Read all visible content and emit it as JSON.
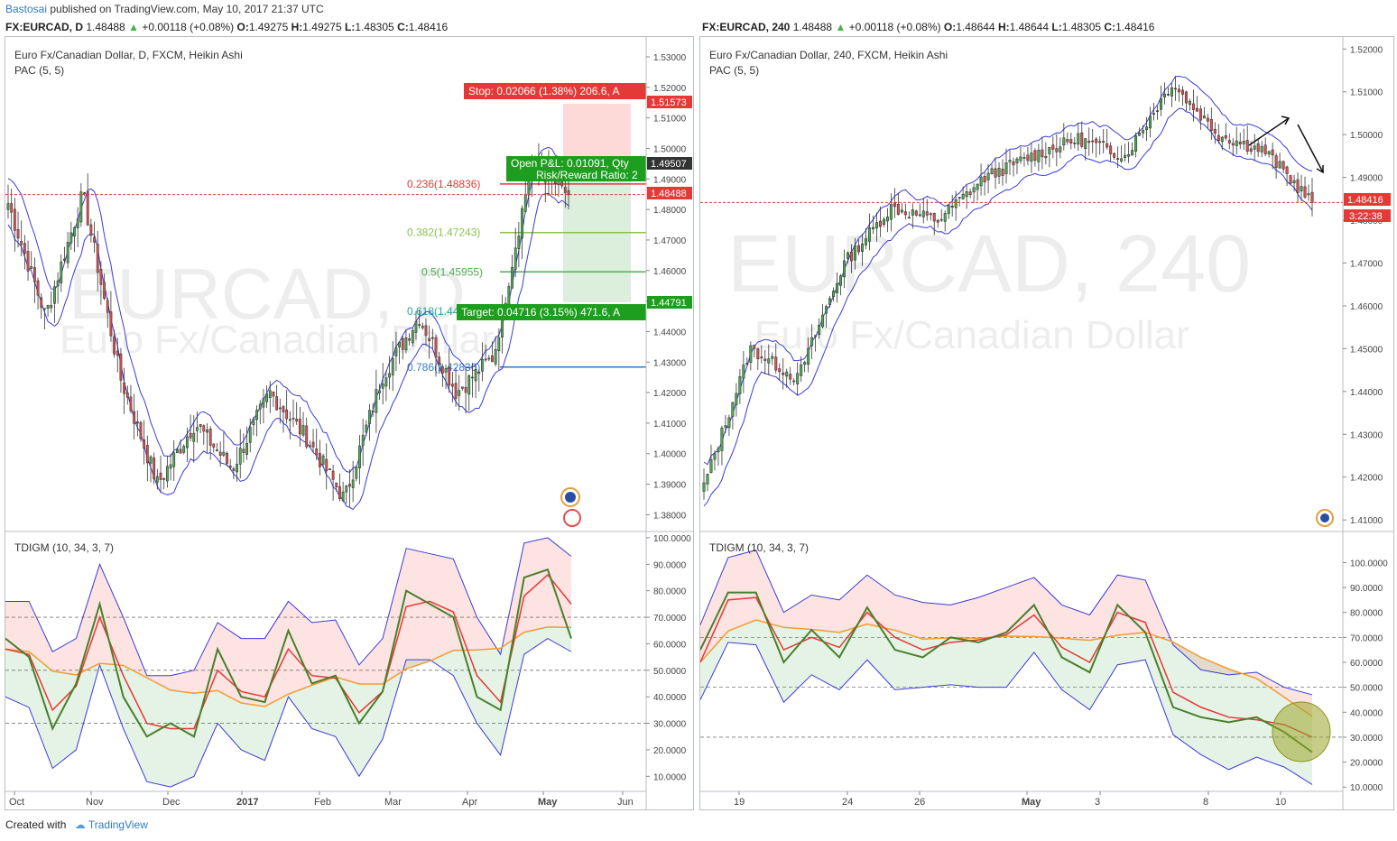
{
  "header": {
    "author": "Bastosai",
    "published_text": "published on TradingView.com, May 10, 2017 21:37 UTC"
  },
  "footer": {
    "created_with": "Created with",
    "brand": "TradingView"
  },
  "colors": {
    "bull": "#4caf50",
    "bear": "#e84f4f",
    "pac": "#3b3bd6",
    "price_line": "#e53935",
    "macd_green": "#4a7f2c",
    "signal_red": "#e53935",
    "midline_orange": "#f39c33"
  },
  "left": {
    "symbol_line": {
      "symbol": "FX:EURCAD, D",
      "last": "1.48488",
      "change": "+0.00118 (+0.08%)",
      "o": "1.49275",
      "h": "1.49275",
      "l": "1.48305",
      "c": "1.48416"
    },
    "title": "Euro Fx/Canadian Dollar, D, FXCM, Heikin Ashi",
    "indicator": "PAC (5, 5)",
    "watermark_1": "EURCAD, D",
    "watermark_2": "Euro Fx/Canadian Dollar",
    "position_labels": {
      "stop": "Stop: 0.02066 (1.38%) 206.6, A",
      "pnl": "Open P&L: 0.01091, Qty",
      "rr": "Risk/Reward Ratio: 2",
      "target": "Target: 0.04716 (3.15%) 471.6, A"
    },
    "price_tags": {
      "stop": "1.51573",
      "entry": "1.49507",
      "current": "1.48488",
      "target": "1.44791"
    },
    "fib_labels": [
      "0.236(1.48836)",
      "0.382(1.47243)",
      "0.5(1.45955)",
      "0.618(1.44668)",
      "0.786(1.42836)"
    ],
    "lower_title": "TDIGM (10, 34, 3, 7)"
  },
  "right": {
    "symbol_line": {
      "symbol": "FX:EURCAD, 240",
      "last": "1.48488",
      "change": "+0.00118 (+0.08%)",
      "o": "1.48644",
      "h": "1.48644",
      "l": "1.48305",
      "c": "1.48416"
    },
    "title": "Euro Fx/Canadian Dollar, 240, FXCM, Heikin Ashi",
    "indicator": "PAC (5, 5)",
    "watermark_1": "EURCAD, 240",
    "watermark_2": "Euro Fx/Canadian Dollar",
    "price_tags": {
      "current": "1.48416",
      "countdown": "3:22:38"
    },
    "lower_title": "TDIGM (10, 34, 3, 7)"
  },
  "chart_data": [
    {
      "type": "candlestick",
      "panel": "left-price",
      "title": "Euro Fx/Canadian Dollar, D, FXCM, Heikin Ashi",
      "x_ticks": [
        "Oct",
        "Nov",
        "Dec",
        "2017",
        "Feb",
        "Mar",
        "Apr",
        "May",
        "Jun"
      ],
      "y_ticks": [
        "1.53000",
        "1.52000",
        "1.51000",
        "1.50000",
        "1.49000",
        "1.48000",
        "1.47000",
        "1.46000",
        "1.45000",
        "1.44000",
        "1.43000",
        "1.42000",
        "1.41000",
        "1.40000",
        "1.39000",
        "1.38000"
      ],
      "ylim": [
        1.3745,
        1.5365
      ],
      "approx_close_path": [
        {
          "x": "Oct",
          "y": 1.482
        },
        {
          "x": "Oct 20",
          "y": 1.445
        },
        {
          "x": "Nov 8",
          "y": 1.485
        },
        {
          "x": "Nov 25",
          "y": 1.425
        },
        {
          "x": "Dec 15",
          "y": 1.39
        },
        {
          "x": "2017",
          "y": 1.41
        },
        {
          "x": "Jan 15",
          "y": 1.395
        },
        {
          "x": "Feb 1",
          "y": 1.42
        },
        {
          "x": "Feb 15",
          "y": 1.405
        },
        {
          "x": "Feb 25",
          "y": 1.385
        },
        {
          "x": "Mar 10",
          "y": 1.425
        },
        {
          "x": "Mar 25",
          "y": 1.445
        },
        {
          "x": "Apr 5",
          "y": 1.42
        },
        {
          "x": "Apr 20",
          "y": 1.432
        },
        {
          "x": "May 1",
          "y": 1.495
        },
        {
          "x": "May 10",
          "y": 1.48488
        }
      ],
      "fibonacci": [
        {
          "level": 0.236,
          "price": 1.48836
        },
        {
          "level": 0.382,
          "price": 1.47243
        },
        {
          "level": 0.5,
          "price": 1.45955
        },
        {
          "level": 0.618,
          "price": 1.44668
        },
        {
          "level": 0.786,
          "price": 1.42836
        }
      ],
      "position": {
        "stop": 1.51573,
        "entry": 1.49507,
        "target": 1.44791,
        "current": 1.48488
      }
    },
    {
      "type": "line",
      "panel": "left-oscillator",
      "title": "TDIGM (10, 34, 3, 7)",
      "y_ticks": [
        "100.0000",
        "90.0000",
        "80.0000",
        "70.0000",
        "60.0000",
        "50.0000",
        "40.0000",
        "30.0000",
        "20.0000",
        "10.0000"
      ],
      "ylim": [
        5,
        101
      ],
      "levels": [
        70,
        50,
        30
      ],
      "series": [
        {
          "values": [
            62,
            55,
            28,
            45,
            75,
            40,
            25,
            30,
            25,
            58,
            40,
            38,
            65,
            45,
            48,
            30,
            42,
            80,
            75,
            70,
            40,
            35,
            85,
            88,
            62
          ]
        },
        {
          "values": [
            58,
            56,
            35,
            44,
            70,
            48,
            30,
            28,
            28,
            50,
            42,
            40,
            58,
            48,
            47,
            34,
            42,
            74,
            76,
            72,
            48,
            38,
            78,
            86,
            75
          ]
        }
      ]
    },
    {
      "type": "candlestick",
      "panel": "right-price",
      "title": "Euro Fx/Canadian Dollar, 240, FXCM, Heikin Ashi",
      "x_ticks": [
        "19",
        "24",
        "26",
        "May",
        "3",
        "8",
        "10"
      ],
      "y_ticks": [
        "1.52000",
        "1.51000",
        "1.50000",
        "1.49000",
        "1.48000",
        "1.47000",
        "1.46000",
        "1.45000",
        "1.44000",
        "1.43000",
        "1.42000",
        "1.41000"
      ],
      "ylim": [
        1.4073,
        1.5228
      ],
      "approx_close_path": [
        {
          "x": "18",
          "y": 1.418
        },
        {
          "x": "21",
          "y": 1.45
        },
        {
          "x": "23",
          "y": 1.443
        },
        {
          "x": "24",
          "y": 1.47
        },
        {
          "x": "25",
          "y": 1.483
        },
        {
          "x": "27",
          "y": 1.48
        },
        {
          "x": "28",
          "y": 1.49
        },
        {
          "x": "2",
          "y": 1.495
        },
        {
          "x": "3",
          "y": 1.499
        },
        {
          "x": "4",
          "y": 1.495
        },
        {
          "x": "6",
          "y": 1.512
        },
        {
          "x": "8",
          "y": 1.5
        },
        {
          "x": "9",
          "y": 1.496
        },
        {
          "x": "10",
          "y": 1.48416
        }
      ],
      "current": 1.48416
    },
    {
      "type": "line",
      "panel": "right-oscillator",
      "title": "TDIGM (10, 34, 3, 7)",
      "y_ticks": [
        "100.0000",
        "90.0000",
        "80.0000",
        "70.0000",
        "60.0000",
        "50.0000",
        "40.0000",
        "30.0000",
        "20.0000",
        "10.0000"
      ],
      "ylim": [
        9,
        111
      ],
      "levels": [
        70,
        50,
        30
      ],
      "series": [
        {
          "values": [
            65,
            88,
            88,
            60,
            73,
            62,
            82,
            65,
            62,
            70,
            68,
            72,
            83,
            62,
            56,
            83,
            72,
            42,
            38,
            36,
            38,
            32,
            24
          ]
        },
        {
          "values": [
            60,
            85,
            86,
            65,
            70,
            66,
            80,
            70,
            65,
            68,
            69,
            71,
            79,
            66,
            60,
            80,
            76,
            48,
            42,
            38,
            37,
            35,
            30
          ]
        }
      ]
    }
  ]
}
